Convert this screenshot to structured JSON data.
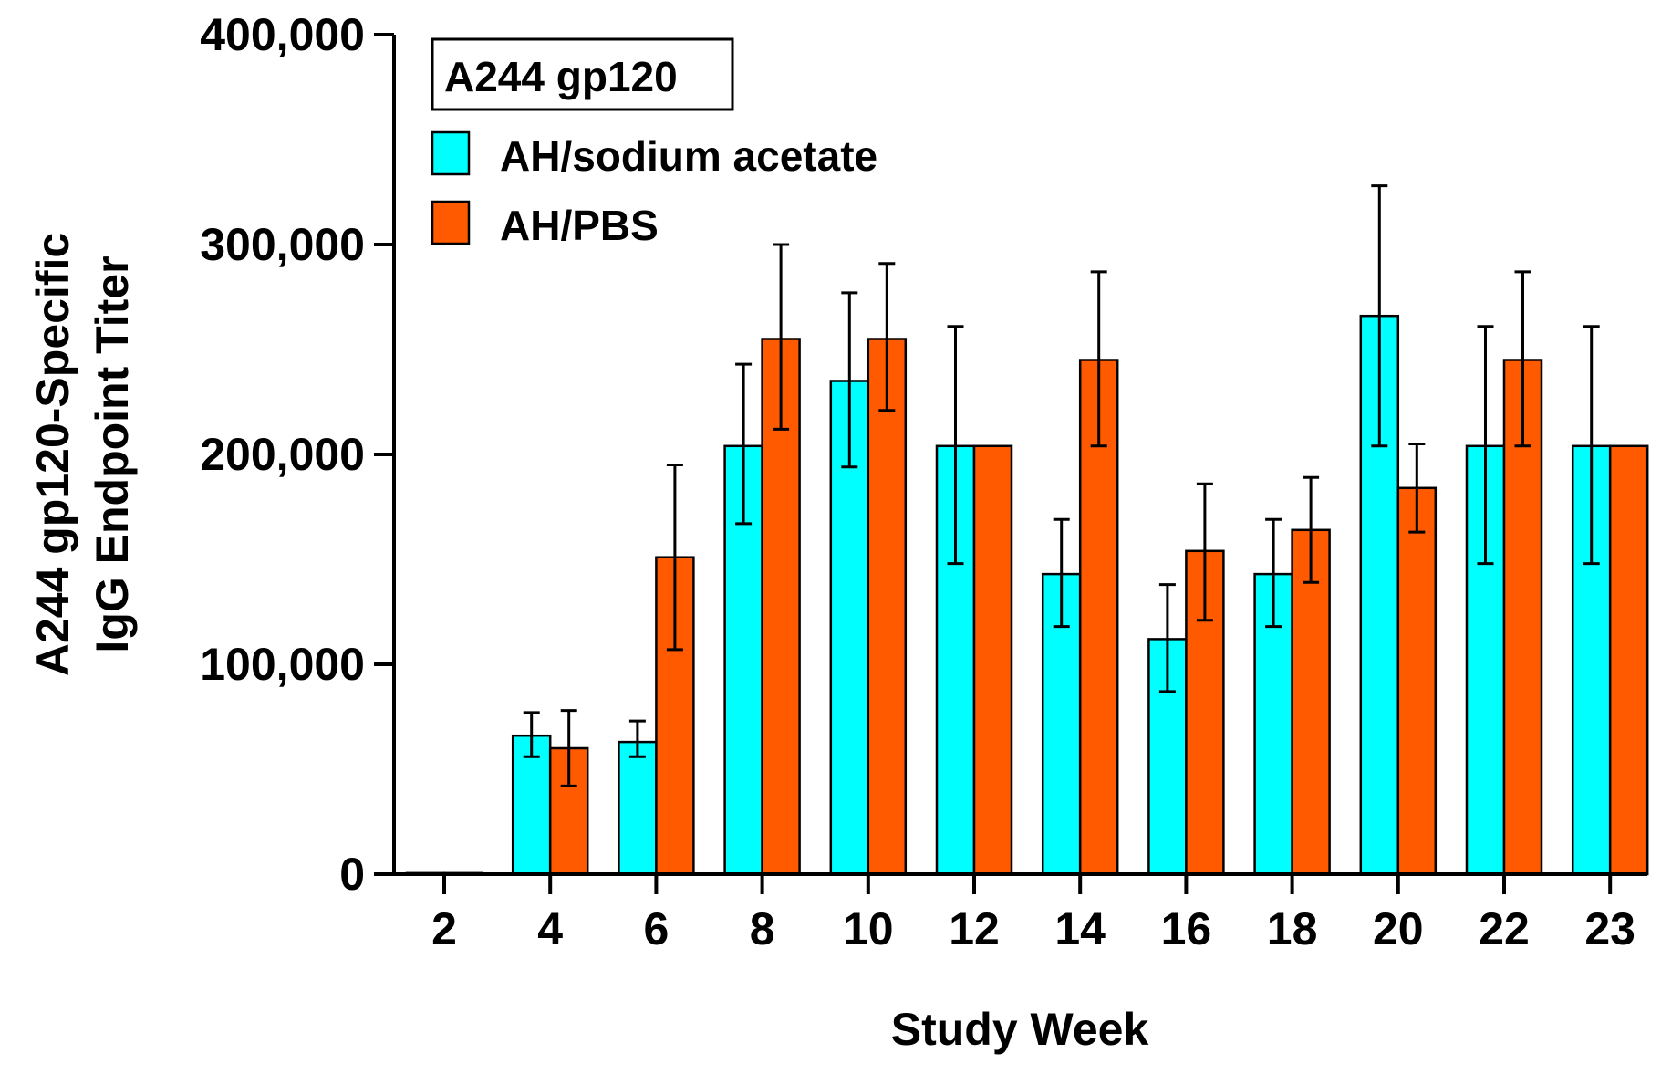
{
  "chart_data": {
    "type": "bar",
    "title": "A244 gp120",
    "xlabel": "Study Week",
    "ylabel_lines": [
      "A244 gp120-Specific",
      "IgG Endpoint Titer"
    ],
    "categories": [
      "2",
      "4",
      "6",
      "8",
      "10",
      "12",
      "14",
      "16",
      "18",
      "20",
      "22",
      "23"
    ],
    "ylim": [
      0,
      400000
    ],
    "yticks": [
      0,
      100000,
      200000,
      300000,
      400000
    ],
    "ytick_labels": [
      "0",
      "100,000",
      "200,000",
      "300,000",
      "400,000"
    ],
    "series": [
      {
        "name": "AH/sodium acetate",
        "color": "#00ffff",
        "values": [
          500,
          66000,
          63000,
          204000,
          235000,
          204000,
          143000,
          112000,
          143000,
          266000,
          204000,
          204000
        ],
        "err_low": [
          500,
          56000,
          56000,
          167000,
          194000,
          148000,
          118000,
          87000,
          118000,
          204000,
          148000,
          148000
        ],
        "err_high": [
          500,
          77000,
          73000,
          243000,
          277000,
          261000,
          169000,
          138000,
          169000,
          328000,
          261000,
          261000
        ]
      },
      {
        "name": "AH/PBS",
        "color": "#ff5a00",
        "values": [
          500,
          60000,
          151000,
          255000,
          255000,
          204000,
          245000,
          154000,
          164000,
          184000,
          245000,
          204000
        ],
        "err_low": [
          500,
          42000,
          107000,
          212000,
          221000,
          204000,
          204000,
          121000,
          139000,
          163000,
          204000,
          204000
        ],
        "err_high": [
          500,
          78000,
          195000,
          300000,
          291000,
          204000,
          287000,
          186000,
          189000,
          205000,
          287000,
          204000
        ]
      }
    ],
    "legend_position": "top-left"
  }
}
